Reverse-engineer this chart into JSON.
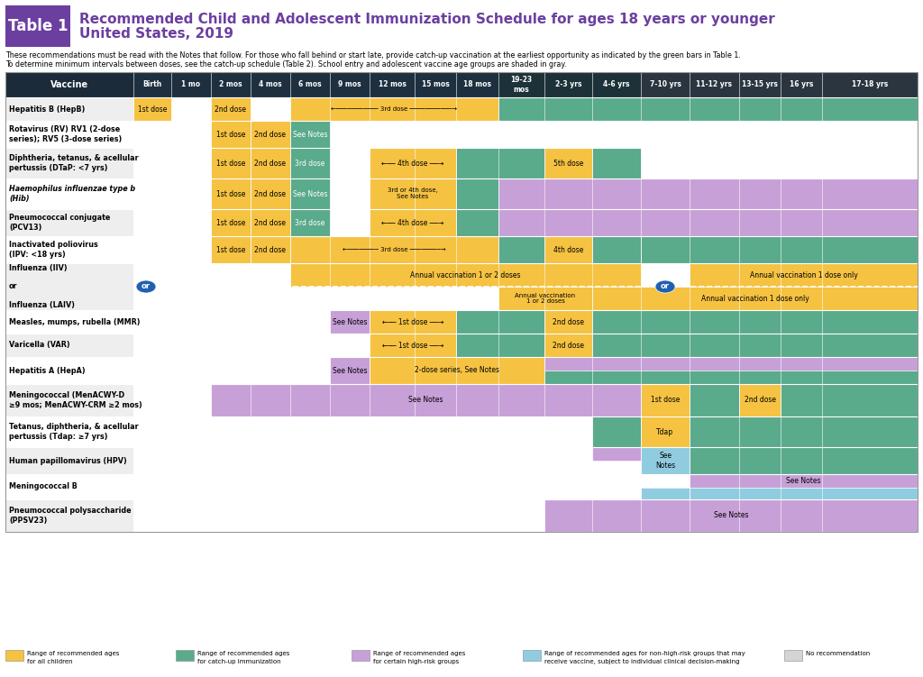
{
  "title_box_color": "#6b3fa0",
  "title_text": "Recommended Child and Adolescent Immunization Schedule for ages 18 years or younger",
  "title_text2": "United States, 2019",
  "subtitle1": "These recommendations must be read with the Notes that follow. For those who fall behind or start late, provide catch-up vaccination at the earliest opportunity as indicated by the green bars in Table 1.",
  "subtitle2": "To determine minimum intervals between doses, see the catch-up schedule (Table 2). School entry and adolescent vaccine age groups are shaded in gray.",
  "header_bg": "#1c2b3a",
  "yellow": "#f5c242",
  "teal": "#5aaa8c",
  "purple": "#c8a0d8",
  "lightblue": "#90cce0",
  "gray_bg": "#d4d4d4",
  "row_bg_odd": "#eeeeee",
  "row_bg_even": "#ffffff",
  "col_labels": [
    "Vaccine",
    "Birth",
    "1 mo",
    "2 mos",
    "4 mos",
    "6 mos",
    "9 mos",
    "12 mos",
    "15 mos",
    "18 mos",
    "19-23\nmos",
    "2-3 yrs",
    "4-6 yrs",
    "7-10 yrs",
    "11-12 yrs",
    "13-15 yrs",
    "16 yrs",
    "17-18 yrs"
  ],
  "vaccines": [
    "Hepatitis B (HepB)",
    "Rotavirus (RV) RV1 (2-dose\nseries); RV5 (3-dose series)",
    "Diphtheria, tetanus, & acellular\npertussis (DTaP: <7 yrs)",
    "Haemophilus influenzae type b\n(Hib)",
    "Pneumococcal conjugate\n(PCV13)",
    "Inactivated poliovirus\n(IPV: <18 yrs)",
    "Influenza (IIV)\n\nor\n\nInfluenza (LAIV)",
    "Measles, mumps, rubella (MMR)",
    "Varicella (VAR)",
    "Hepatitis A (HepA)",
    "Meningococcal (MenACWY-D\n≥9 mos; MenACWY-CRM ≥2 mos)",
    "Tetanus, diphtheria, & acellular\npertussis (Tdap: ≥7 yrs)",
    "Human papillomavirus (HPV)",
    "Meningococcal B",
    "Pneumococcal polysaccharide\n(PPSV23)"
  ],
  "legend_items": [
    {
      "color": "#f5c242",
      "label": "Range of recommended ages\nfor all children"
    },
    {
      "color": "#5aaa8c",
      "label": "Range of recommended ages\nfor catch-up immunization"
    },
    {
      "color": "#c8a0d8",
      "label": "Range of recommended ages\nfor certain high-risk groups"
    },
    {
      "color": "#90cce0",
      "label": "Range of recommended ages for non-high-risk groups that may\nreceive vaccine, subject to individual clinical decision-making"
    },
    {
      "color": "#d4d4d4",
      "label": "No recommendation"
    }
  ]
}
